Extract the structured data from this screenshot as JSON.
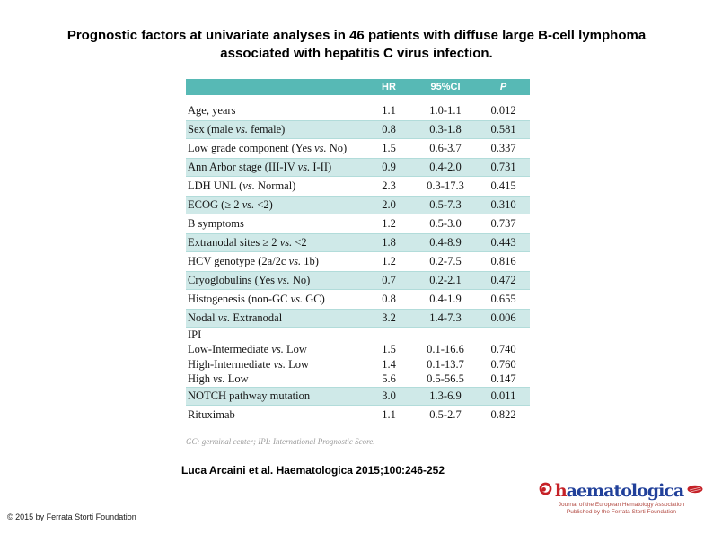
{
  "slide": {
    "title_line1": "Prognostic factors at univariate analyses in 46 patients with diffuse large B-cell lymphoma",
    "title_line2": "associated with hepatitis C virus infection.",
    "citation": "Luca Arcaini et al. Haematologica 2015;100:246-252",
    "copyright": "© 2015 by Ferrata Storti Foundation"
  },
  "table": {
    "headers": {
      "hr": "HR",
      "ci": "95%CI",
      "p": "P"
    },
    "footnote": "GC: germinal center; IPI: International Prognostic Score.",
    "rows": [
      {
        "label": "Age, years",
        "hr": "1.1",
        "ci": "1.0-1.1",
        "p": "0.012"
      },
      {
        "label": "Sex (male vs. female)",
        "hr": "0.8",
        "ci": "0.3-1.8",
        "p": "0.581"
      },
      {
        "label": "Low grade component (Yes vs. No)",
        "hr": "1.5",
        "ci": "0.6-3.7",
        "p": "0.337"
      },
      {
        "label": "Ann Arbor stage (III-IV vs. I-II)",
        "hr": "0.9",
        "ci": "0.4-2.0",
        "p": "0.731"
      },
      {
        "label": "LDH UNL (vs. Normal)",
        "hr": "2.3",
        "ci": "0.3-17.3",
        "p": "0.415"
      },
      {
        "label": "ECOG (≥ 2 vs. <2)",
        "hr": "2.0",
        "ci": "0.5-7.3",
        "p": "0.310"
      },
      {
        "label": "B symptoms",
        "hr": "1.2",
        "ci": "0.5-3.0",
        "p": "0.737"
      },
      {
        "label": "Extranodal sites ≥ 2 vs. <2",
        "hr": "1.8",
        "ci": "0.4-8.9",
        "p": "0.443"
      },
      {
        "label": "HCV genotype (2a/2c vs. 1b)",
        "hr": "1.2",
        "ci": "0.2-7.5",
        "p": "0.816"
      },
      {
        "label": "Cryoglobulins (Yes vs. No)",
        "hr": "0.7",
        "ci": "0.2-2.1",
        "p": "0.472"
      },
      {
        "label": "Histogenesis (non-GC vs. GC)",
        "hr": "0.8",
        "ci": "0.4-1.9",
        "p": "0.655"
      },
      {
        "label": "Nodal vs. Extranodal",
        "hr": "3.2",
        "ci": "1.4-7.3",
        "p": "0.006"
      },
      {
        "label": "IPI",
        "hr": "",
        "ci": "",
        "p": ""
      },
      {
        "label": "Low-Intermediate vs. Low",
        "hr": "1.5",
        "ci": "0.1-16.6",
        "p": "0.740"
      },
      {
        "label": "High-Intermediate vs. Low",
        "hr": "1.4",
        "ci": "0.1-13.7",
        "p": "0.760"
      },
      {
        "label": "High vs. Low",
        "hr": "5.6",
        "ci": "0.5-56.5",
        "p": "0.147"
      },
      {
        "label": "NOTCH pathway mutation",
        "hr": "3.0",
        "ci": "1.3-6.9",
        "p": "0.011"
      },
      {
        "label": "Rituximab",
        "hr": "1.1",
        "ci": "0.5-2.7",
        "p": "0.822"
      }
    ]
  },
  "logo": {
    "wordmark_first": "h",
    "wordmark_rest": "aematologica",
    "tagline_line1": "Journal of the European Hematology Association",
    "tagline_line2": "Published by the Ferrata Storti Foundation",
    "icons": [
      "haematologica-drop-icon",
      "eha-emblem-icon"
    ]
  },
  "colors": {
    "header_teal": "#57b9b5",
    "row_stripe_teal": "#cfe9e8",
    "logo_red": "#c52127",
    "logo_blue": "#21409a",
    "footnote_gray": "#9b9b9b"
  }
}
